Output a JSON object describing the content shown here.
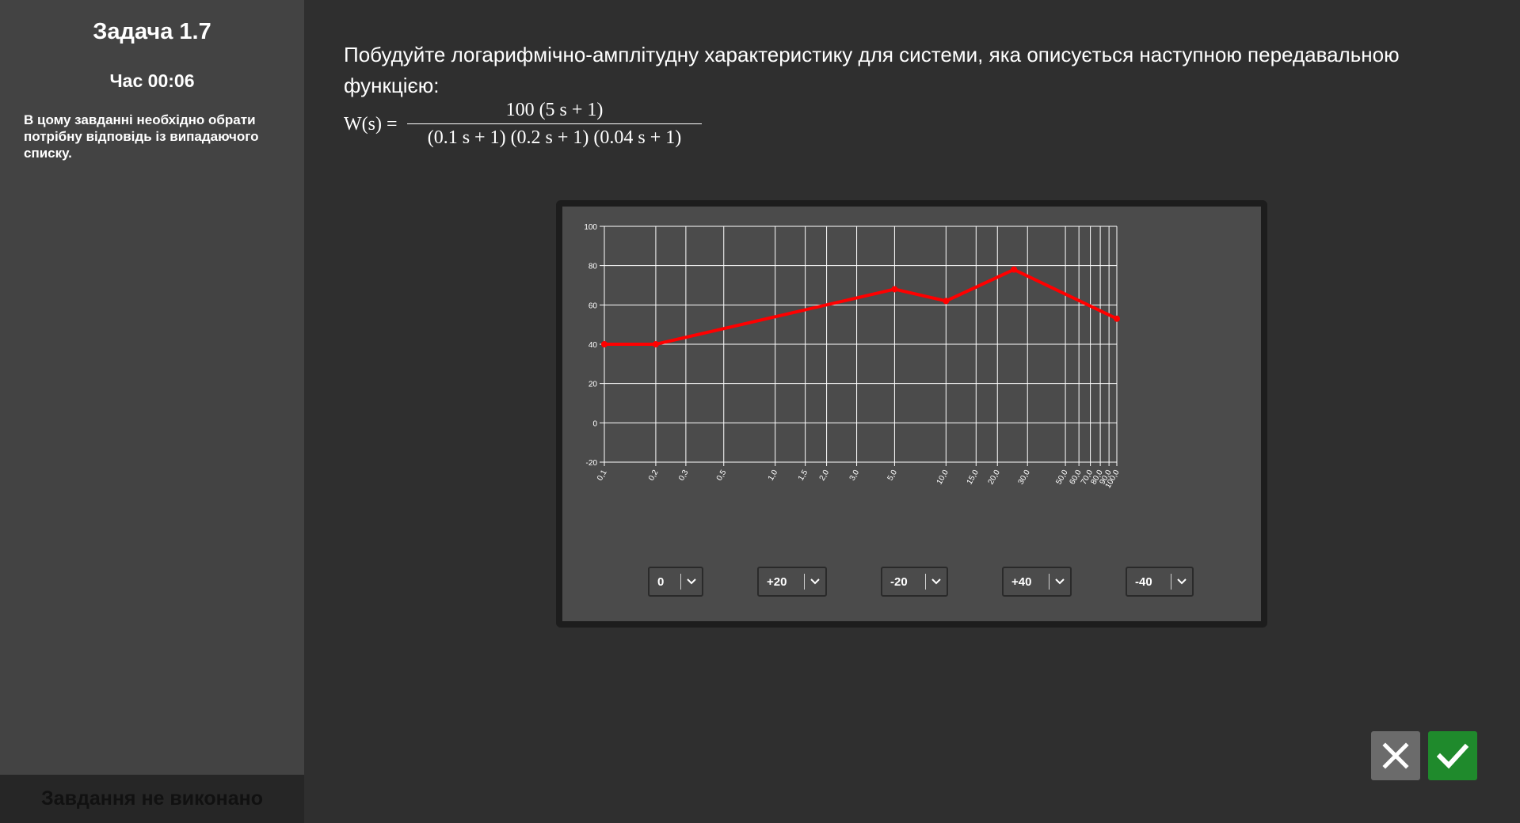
{
  "sidebar": {
    "title": "Задача 1.7",
    "timer_label": "Час",
    "timer_value": "00:06",
    "instruction": "В цому завданні необхідно обрати потрібну відповідь із випадаючого списку.",
    "status": "Завдання не виконано"
  },
  "question": {
    "text": "Побудуйте логарифмічно-амплітудну характеристику для системи, яка описується наступною передавальною функцією:",
    "formula_lhs": "W(s) =",
    "formula_numerator": "100 (5 s + 1)",
    "formula_denominator": "(0.1 s + 1) (0.2 s + 1) (0.04 s + 1)"
  },
  "chart_data": {
    "type": "line",
    "x_scale": "log",
    "x": [
      0.1,
      0.2,
      5.0,
      10.0,
      25.0,
      100.0
    ],
    "y": [
      40,
      40,
      68,
      62,
      78,
      53
    ],
    "xlim": [
      0.1,
      100.0
    ],
    "ylim": [
      -20,
      100
    ],
    "y_ticks": [
      100,
      80,
      60,
      40,
      20,
      0,
      -20
    ],
    "x_ticks": [
      0.1,
      0.2,
      0.3,
      0.5,
      1.0,
      1.5,
      2.0,
      3.0,
      5.0,
      10.0,
      15.0,
      20.0,
      30.0,
      50.0,
      60.0,
      70.0,
      80.0,
      90.0,
      100.0
    ],
    "x_tick_labels": [
      "0,1",
      "0,2",
      "0,3",
      "0,5",
      "1,0",
      "1,5",
      "2,0",
      "3,0",
      "5,0",
      "10,0",
      "15,0",
      "20,0",
      "30,0",
      "50,0",
      "60,0",
      "70,0",
      "80,0",
      "90,0",
      "100,0"
    ],
    "grid": true,
    "line_color": "#ff0000"
  },
  "dropdowns": [
    {
      "value": "0"
    },
    {
      "value": "+20"
    },
    {
      "value": "-20"
    },
    {
      "value": "+40"
    },
    {
      "value": "-40"
    }
  ],
  "buttons": {
    "cancel_icon": "close-icon",
    "confirm_icon": "check-icon"
  },
  "colors": {
    "confirm": "#1f8a2c",
    "cancel": "#6b6b6b",
    "line": "#ff0000"
  }
}
